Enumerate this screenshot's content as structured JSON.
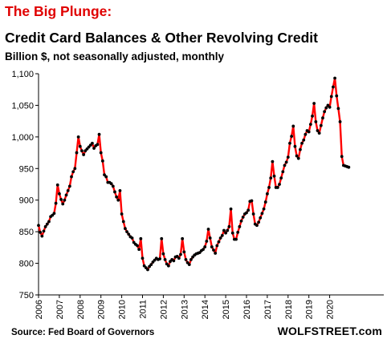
{
  "title": "The Big Plunge:",
  "subtitle": "Credit Card Balances & Other Revolving Credit",
  "units": "Billion $, not seasonally adjusted, monthly",
  "source": "Source: Fed Board of Governors",
  "brand": "WOLFSTREET.com",
  "colors": {
    "line": "#ff0000",
    "marker": "#000000",
    "title": "#e00000"
  },
  "chart_data": {
    "type": "line",
    "ylim": [
      750,
      1100
    ],
    "yticks": [
      750,
      800,
      850,
      900,
      950,
      1000,
      1050,
      1100
    ],
    "ytick_labels": [
      "750",
      "800",
      "850",
      "900",
      "950",
      "1,000",
      "1,050",
      "1,100"
    ],
    "xticks": [
      "2006",
      "2007",
      "2008",
      "2009",
      "2010",
      "2011",
      "2012",
      "2013",
      "2014",
      "2015",
      "2016",
      "2017",
      "2018",
      "2019",
      "2020"
    ],
    "grid": false,
    "x_start": "2006-01",
    "frequency": "monthly",
    "series": [
      {
        "values": [
          860,
          849,
          843,
          851,
          858,
          862,
          866,
          874,
          876,
          879,
          895,
          924,
          910,
          901,
          894,
          900,
          908,
          915,
          922,
          937,
          945,
          950,
          975,
          1000,
          985,
          978,
          972,
          978,
          981,
          984,
          987,
          990,
          982,
          986,
          988,
          1004,
          975,
          962,
          940,
          937,
          928,
          928,
          926,
          922,
          913,
          905,
          900,
          915,
          878,
          866,
          855,
          850,
          846,
          842,
          840,
          833,
          830,
          828,
          822,
          839,
          808,
          796,
          793,
          790,
          795,
          798,
          802,
          805,
          808,
          806,
          807,
          839,
          815,
          806,
          799,
          796,
          803,
          806,
          804,
          810,
          811,
          808,
          814,
          839,
          818,
          806,
          801,
          798,
          806,
          810,
          813,
          815,
          816,
          817,
          820,
          822,
          826,
          835,
          854,
          840,
          826,
          821,
          816,
          828,
          834,
          840,
          844,
          852,
          848,
          852,
          858,
          886,
          848,
          838,
          838,
          849,
          858,
          867,
          873,
          878,
          880,
          884,
          898,
          899,
          878,
          862,
          860,
          865,
          872,
          879,
          886,
          897,
          910,
          920,
          935,
          961,
          938,
          920,
          920,
          925,
          935,
          945,
          955,
          960,
          968,
          990,
          1001,
          1017,
          985,
          970,
          966,
          980,
          990,
          995,
          1004,
          1010,
          1008,
          1020,
          1033,
          1053,
          1024,
          1010,
          1006,
          1018,
          1030,
          1040,
          1046,
          1050,
          1047,
          1064,
          1079,
          1093,
          1065,
          1045,
          1024,
          969,
          955,
          954,
          953,
          952
        ]
      }
    ]
  }
}
